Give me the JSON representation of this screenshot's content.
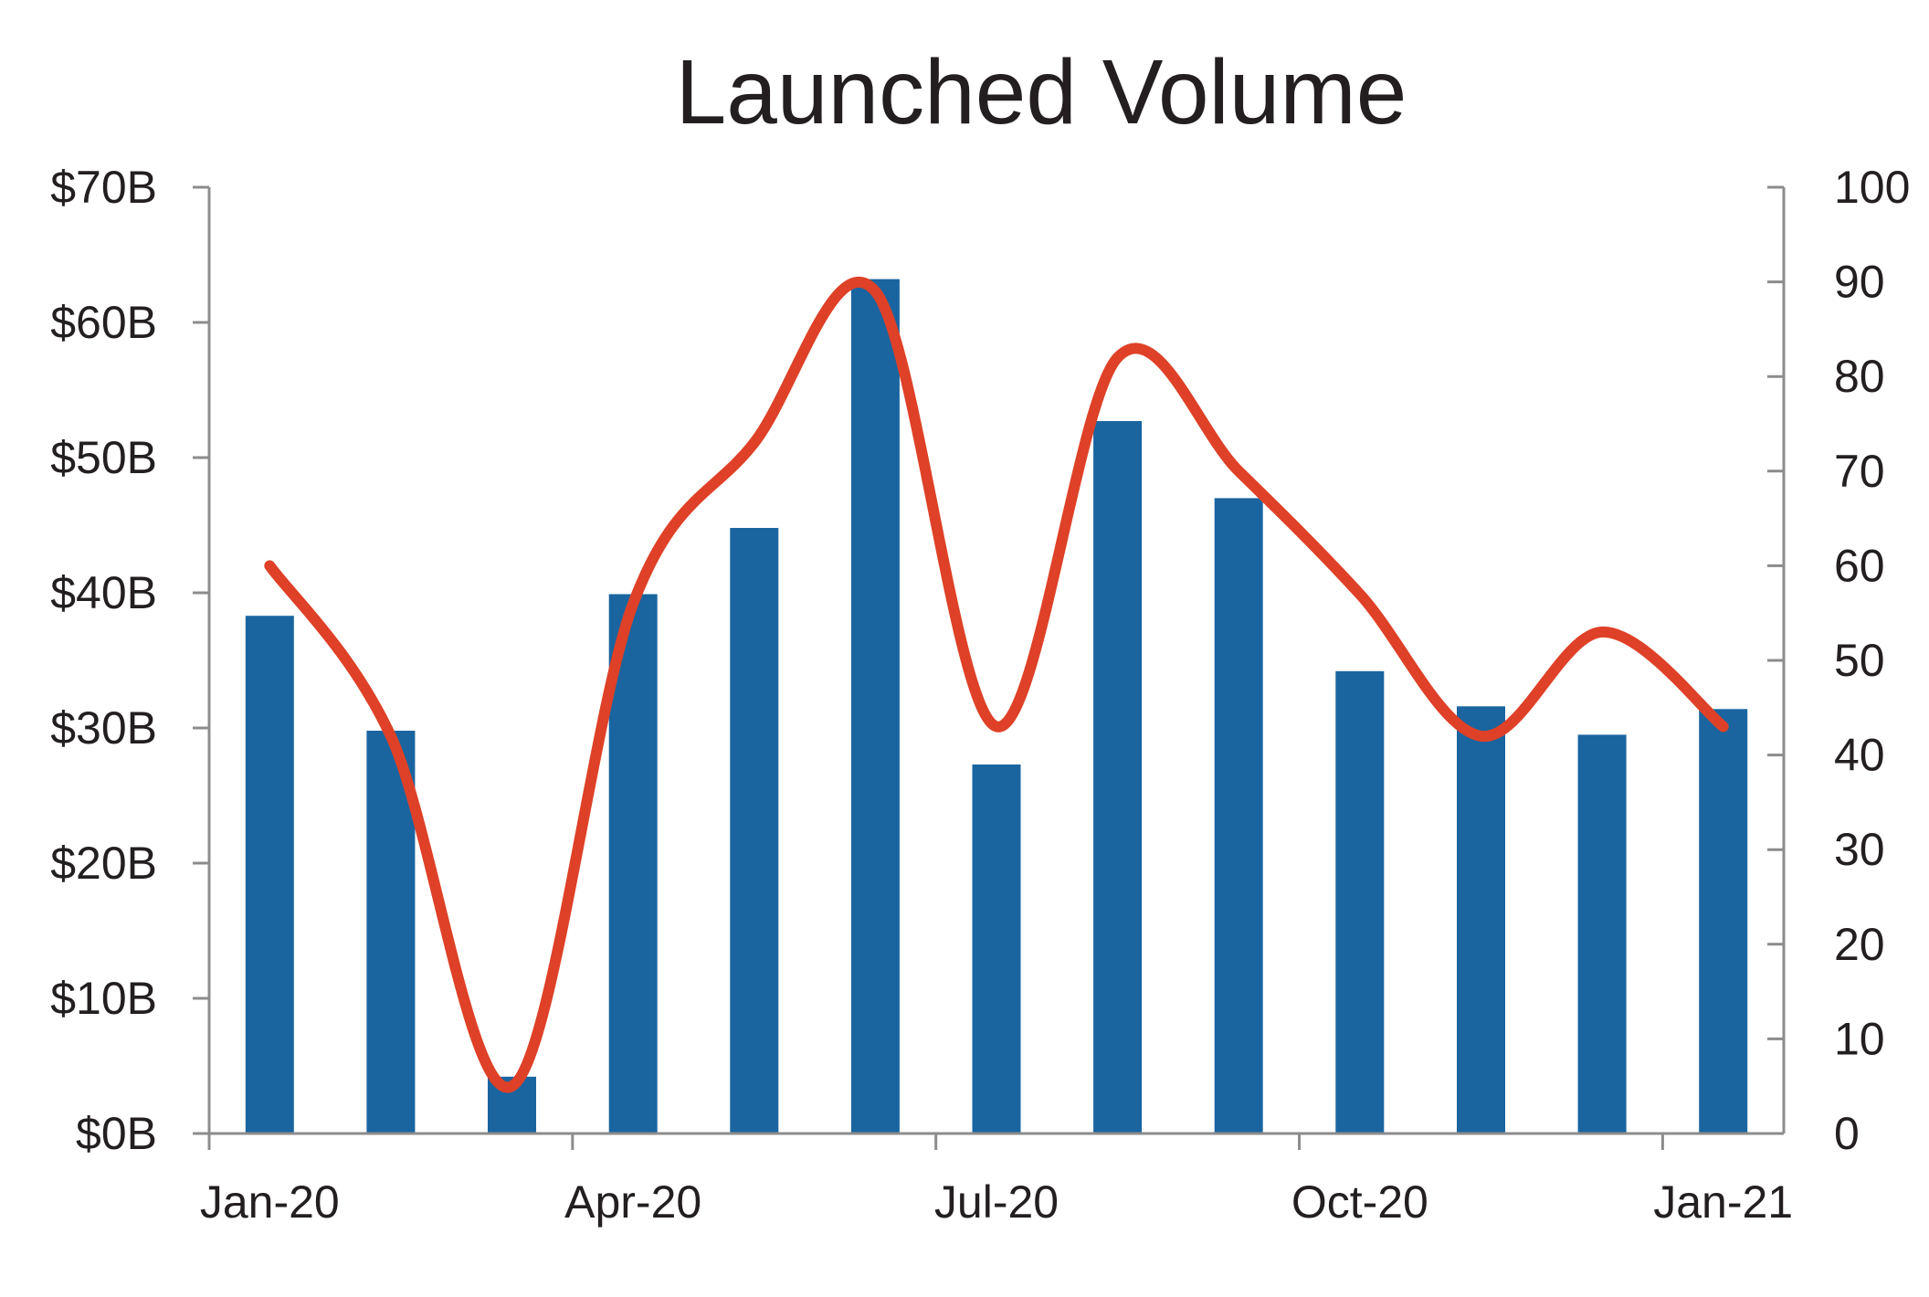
{
  "chart_data": {
    "type": "bar",
    "title": "Launched Volume",
    "xlabel": "",
    "ylabel": "",
    "y2label": "",
    "x_tick_labels": [
      "Jan-20",
      "Apr-20",
      "Jul-20",
      "Oct-20",
      "Jan-21"
    ],
    "categories": [
      "2020-01",
      "2020-02",
      "2020-03",
      "2020-04",
      "2020-05",
      "2020-06",
      "2020-07",
      "2020-08",
      "2020-09",
      "2020-10",
      "2020-11",
      "2020-12",
      "2021-01"
    ],
    "series": [
      {
        "type": "bar",
        "axis": "left",
        "color": "#1a65a0",
        "values": [
          38.3,
          29.8,
          4.2,
          39.9,
          44.8,
          63.2,
          27.3,
          52.7,
          47.0,
          34.2,
          31.6,
          29.5,
          31.4
        ]
      },
      {
        "type": "line",
        "axis": "right",
        "smooth": true,
        "color": "#de4127",
        "values": [
          60,
          42,
          5,
          56,
          73,
          89,
          43,
          82,
          70,
          57,
          42,
          53,
          43
        ]
      }
    ],
    "y_left": {
      "min": 0,
      "max": 70,
      "step": 10,
      "tick_labels": [
        "$0B",
        "$10B",
        "$20B",
        "$30B",
        "$40B",
        "$50B",
        "$60B",
        "$70B"
      ]
    },
    "y_right": {
      "min": 0,
      "max": 100,
      "step": 10,
      "tick_labels": [
        "0",
        "10",
        "20",
        "30",
        "40",
        "50",
        "60",
        "70",
        "80",
        "90",
        "100"
      ]
    },
    "grid": false,
    "legend": "none"
  }
}
